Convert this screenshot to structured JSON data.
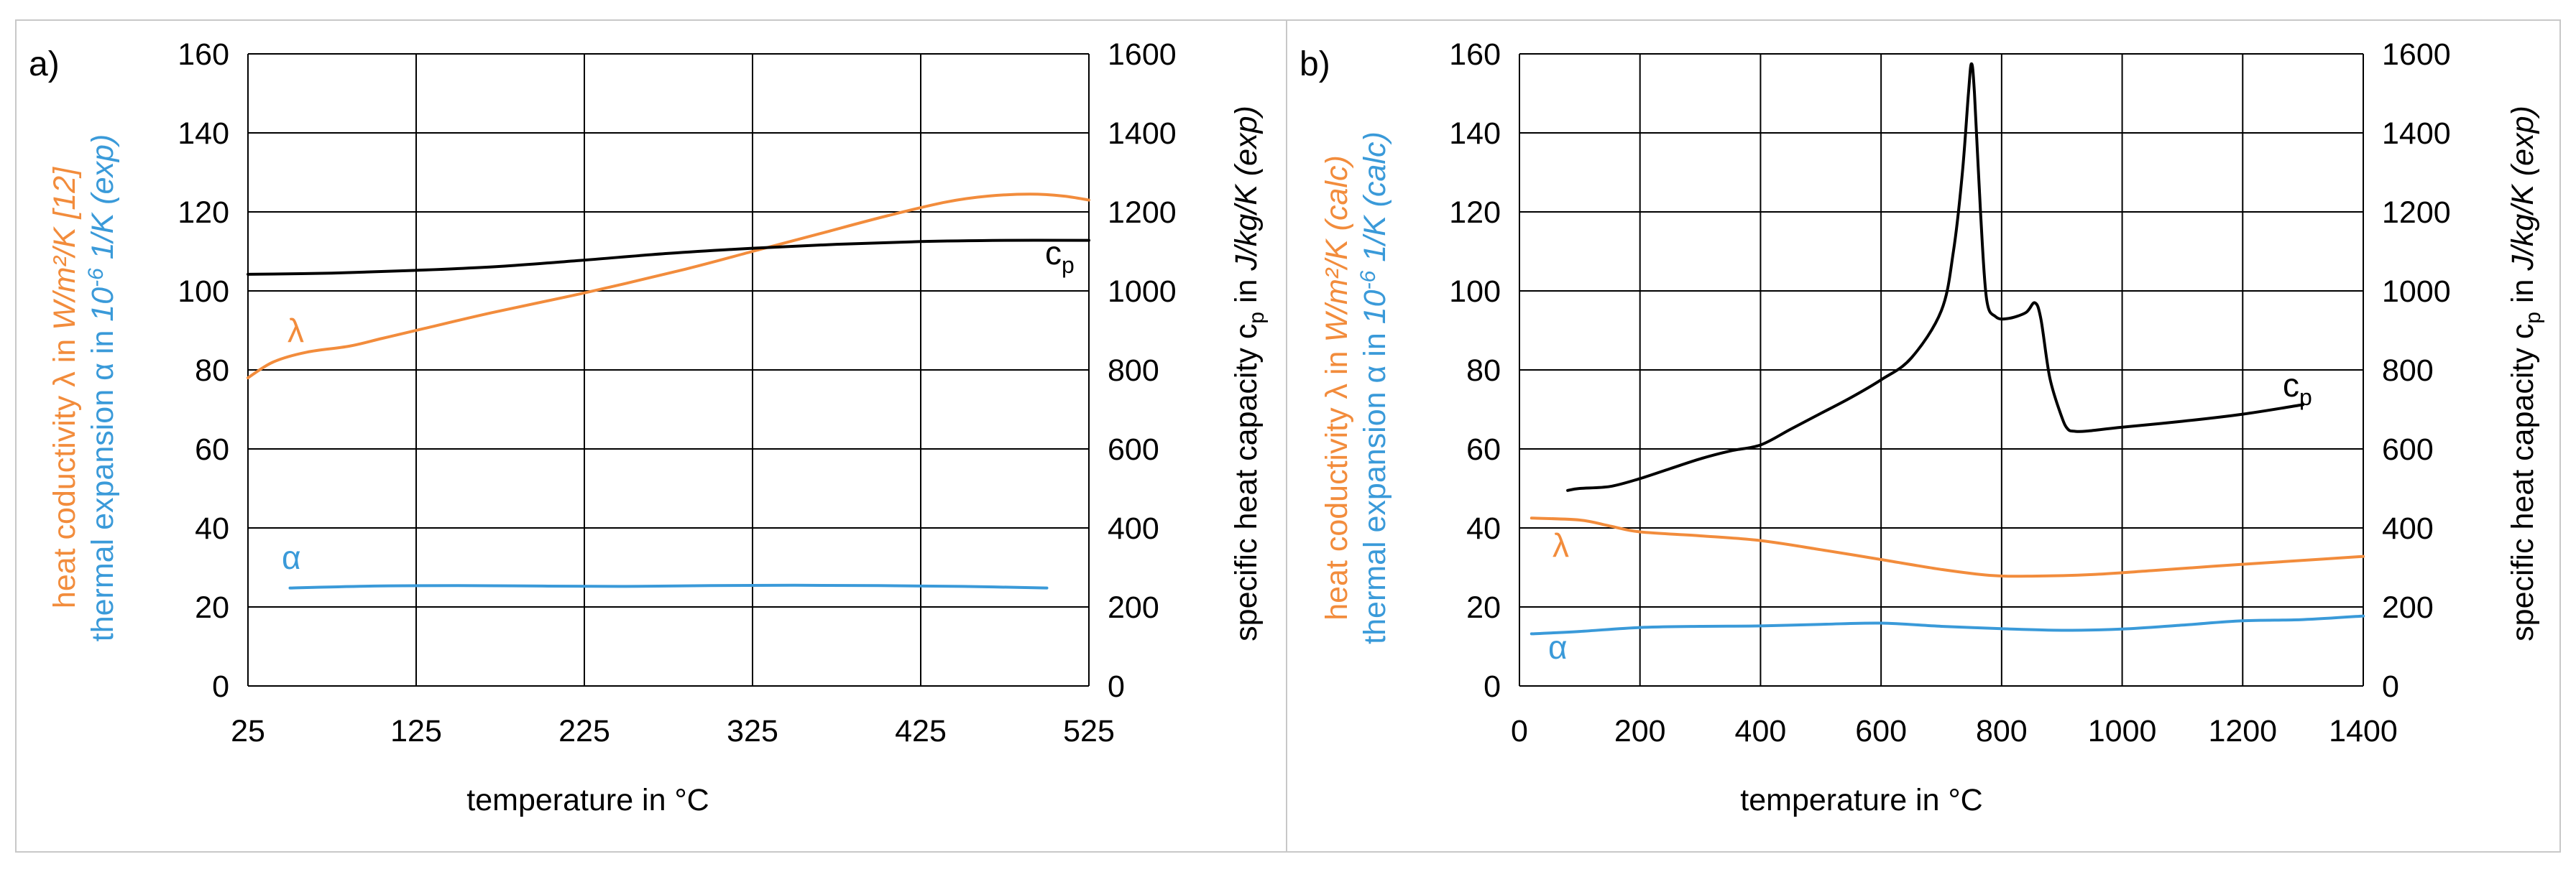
{
  "colors": {
    "lambda": "#F28C3C",
    "alpha": "#3A9AD9",
    "cp": "#000000",
    "grid": "#000000",
    "frame": "#C8C8C8"
  },
  "chart_data": [
    {
      "type": "line",
      "panel_label": "a)",
      "xlabel": "temperature in °C",
      "xlim": [
        25,
        525
      ],
      "x_ticks": [
        "25",
        "125",
        "225",
        "325",
        "425",
        "525"
      ],
      "ylim_left": [
        0,
        160
      ],
      "y_left_ticks": [
        "0",
        "20",
        "40",
        "60",
        "80",
        "100",
        "120",
        "140",
        "160"
      ],
      "ylim_right": [
        0,
        1600
      ],
      "y_right_ticks": [
        "0",
        "200",
        "400",
        "600",
        "800",
        "1000",
        "1200",
        "1400",
        "1600"
      ],
      "ylabel_left_lambda": "heat coductivity λ in W/m²/K [12]",
      "ylabel_left_alpha": "thermal expansion α in 10⁻⁶ 1/K (exp)",
      "ylabel_right": "specific heat capacity cp in J/kg/K (exp)",
      "ylabel_left_lambda_parts": [
        "heat coductivity λ in ",
        "W/m²/K [12]"
      ],
      "ylabel_left_alpha_parts": [
        "thermal expansion α in ",
        "10",
        "-6",
        " 1/K (exp)"
      ],
      "ylabel_right_parts": [
        "specific heat capacity c",
        "p",
        " in ",
        "J/kg/K (exp)"
      ],
      "series": [
        {
          "name": "λ",
          "label": "λ",
          "axis": "left",
          "x": [
            25,
            40,
            60,
            85,
            105,
            130,
            170,
            225,
            285,
            325,
            365,
            405,
            440,
            465,
            490,
            510,
            525
          ],
          "y": [
            78,
            82,
            84.5,
            86,
            88,
            90.5,
            94.5,
            99.5,
            105.5,
            110,
            114.5,
            119,
            122.5,
            124,
            124.5,
            124,
            123
          ]
        },
        {
          "name": "α",
          "label": "α",
          "axis": "left",
          "x": [
            50,
            100,
            150,
            200,
            250,
            300,
            350,
            400,
            450,
            500
          ],
          "y": [
            24.8,
            25.3,
            25.4,
            25.3,
            25.2,
            25.4,
            25.5,
            25.4,
            25.2,
            24.8
          ]
        },
        {
          "name": "cp",
          "label": "c",
          "label_sub": "p",
          "axis": "right",
          "x": [
            25,
            75,
            125,
            175,
            225,
            275,
            325,
            375,
            425,
            475,
            525
          ],
          "y": [
            1042,
            1045,
            1052,
            1062,
            1078,
            1095,
            1108,
            1118,
            1125,
            1128,
            1128
          ]
        }
      ]
    },
    {
      "type": "line",
      "panel_label": "b)",
      "xlabel": "temperature in °C",
      "xlim": [
        0,
        1400
      ],
      "x_ticks": [
        "0",
        "200",
        "400",
        "600",
        "800",
        "1000",
        "1200",
        "1400"
      ],
      "ylim_left": [
        0,
        160
      ],
      "y_left_ticks": [
        "0",
        "20",
        "40",
        "60",
        "80",
        "100",
        "120",
        "140",
        "160"
      ],
      "ylim_right": [
        0,
        1600
      ],
      "y_right_ticks": [
        "0",
        "200",
        "400",
        "600",
        "800",
        "1000",
        "1200",
        "1400",
        "1600"
      ],
      "ylabel_left_lambda": "heat coductivity λ in W/m²/K (calc)",
      "ylabel_left_alpha": "thermal expansion α in 10⁻⁶ 1/K (calc)",
      "ylabel_right": "specific heat capacity cp in J/kg/K (exp)",
      "ylabel_left_lambda_parts": [
        "heat coductivity λ in ",
        "W/m²/K (calc)"
      ],
      "ylabel_left_alpha_parts": [
        "thermal expansion α in ",
        "10",
        "-6",
        " 1/K (calc)"
      ],
      "ylabel_right_parts": [
        "specific heat capacity c",
        "p",
        " in ",
        "J/kg/K (exp)"
      ],
      "series": [
        {
          "name": "λ",
          "label": "λ",
          "axis": "left",
          "x": [
            20,
            100,
            150,
            200,
            300,
            400,
            500,
            600,
            700,
            780,
            850,
            950,
            1050,
            1150,
            1250,
            1400
          ],
          "y": [
            42.5,
            42,
            40.5,
            39,
            38,
            36.8,
            34.5,
            32,
            29.5,
            28,
            27.8,
            28.2,
            29.2,
            30.3,
            31.3,
            32.8
          ]
        },
        {
          "name": "α",
          "label": "α",
          "axis": "left",
          "x": [
            20,
            100,
            200,
            300,
            400,
            500,
            600,
            700,
            800,
            900,
            1000,
            1100,
            1200,
            1300,
            1400
          ],
          "y": [
            13.2,
            13.8,
            14.8,
            15.1,
            15.2,
            15.6,
            15.9,
            15.1,
            14.5,
            14.1,
            14.4,
            15.4,
            16.5,
            16.8,
            17.7
          ]
        },
        {
          "name": "cp",
          "label": "c",
          "label_sub": "p",
          "axis": "right",
          "x": [
            80,
            100,
            150,
            200,
            250,
            300,
            350,
            400,
            450,
            500,
            550,
            600,
            650,
            700,
            720,
            735,
            745,
            750,
            755,
            765,
            775,
            790,
            810,
            840,
            855,
            865,
            880,
            900,
            910,
            920,
            940,
            1000,
            1100,
            1200,
            1300
          ],
          "y": [
            495,
            500,
            505,
            525,
            550,
            575,
            595,
            610,
            650,
            690,
            730,
            775,
            830,
            950,
            1100,
            1300,
            1500,
            1575,
            1500,
            1200,
            980,
            935,
            930,
            945,
            970,
            930,
            780,
            680,
            650,
            645,
            645,
            655,
            670,
            688,
            712
          ]
        }
      ]
    }
  ]
}
